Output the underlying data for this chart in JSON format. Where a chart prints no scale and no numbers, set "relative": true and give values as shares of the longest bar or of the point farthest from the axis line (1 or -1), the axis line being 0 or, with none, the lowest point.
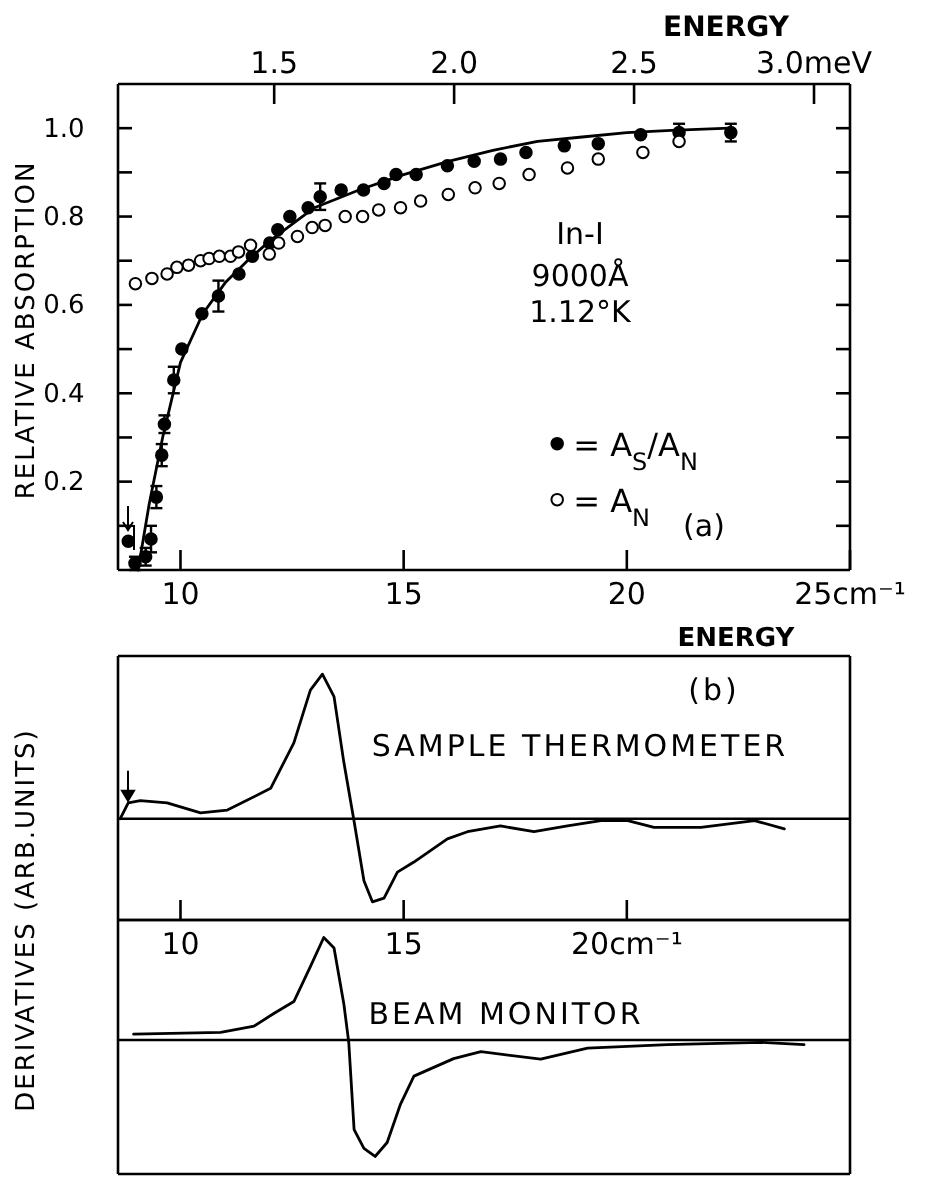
{
  "chart_data": [
    {
      "type": "scatter",
      "ylabel": "RELATIVE ABSORPTION",
      "x2label": "ENERGY",
      "xlim": [
        8.6,
        25
      ],
      "ylim": [
        0,
        1.1
      ],
      "x2lim": [
        1.066,
        3.1
      ],
      "xticks": [
        10,
        15,
        20,
        {
          "value": 25,
          "label": "25cm⁻¹"
        }
      ],
      "yticks": [
        {
          "value": 0.1,
          "label": null
        },
        {
          "value": 0.2,
          "label": "0.2"
        },
        {
          "value": 0.3,
          "label": null
        },
        {
          "value": 0.4,
          "label": "0.4"
        },
        {
          "value": 0.5,
          "label": null
        },
        {
          "value": 0.6,
          "label": "0.6"
        },
        {
          "value": 0.7,
          "label": null
        },
        {
          "value": 0.8,
          "label": "0.8"
        },
        {
          "value": 0.9,
          "label": null
        },
        {
          "value": 1,
          "label": "1.0"
        }
      ],
      "x2ticks": [
        1.5,
        {
          "value": 2,
          "label": "2.0"
        },
        2.5,
        {
          "value": 3,
          "label": "3.0meV"
        }
      ],
      "legend": "right",
      "annotations": [
        "In-I",
        "9000Å",
        "1.12°K",
        "(a)"
      ],
      "series": [
        {
          "type": "line",
          "color": "#000000",
          "x": [
            9.05,
            9.3,
            9.6,
            10.0,
            10.5,
            11.0,
            11.5,
            12.0,
            13.0,
            14.0,
            15.0,
            16.0,
            17.0,
            18.0,
            19.0,
            20.0,
            21.0,
            22.3
          ],
          "values": [
            0,
            0.15,
            0.3,
            0.47,
            0.58,
            0.65,
            0.7,
            0.745,
            0.82,
            0.86,
            0.895,
            0.925,
            0.95,
            0.97,
            0.98,
            0.99,
            0.995,
            1.0
          ]
        },
        {
          "name": "= A$_{S}$/A$_{N}$",
          "type": "scatter",
          "marker": "circle",
          "color": "#000000",
          "x": [
            8.83,
            8.98,
            9.22,
            9.34,
            9.46,
            9.58,
            9.64,
            9.85,
            10.03,
            10.48,
            10.85,
            11.31,
            11.61,
            12.0,
            12.18,
            12.45,
            12.86,
            13.13,
            13.6,
            14.1,
            14.56,
            14.83,
            15.28,
            15.98,
            16.58,
            17.17,
            17.74,
            18.6,
            19.36,
            20.31,
            21.17,
            22.33
          ],
          "values": [
            0.065,
            0.015,
            0.03,
            0.07,
            0.165,
            0.26,
            0.33,
            0.43,
            0.5,
            0.58,
            0.62,
            0.67,
            0.71,
            0.74,
            0.77,
            0.8,
            0.82,
            0.845,
            0.86,
            0.86,
            0.875,
            0.895,
            0.895,
            0.915,
            0.925,
            0.93,
            0.945,
            0.96,
            0.965,
            0.985,
            0.99,
            0.99
          ],
          "errors": [
            null,
            0.015,
            0.02,
            0.03,
            0.025,
            0.025,
            0.02,
            0.03,
            null,
            null,
            0.035,
            null,
            null,
            null,
            null,
            null,
            null,
            0.03,
            null,
            null,
            null,
            null,
            null,
            null,
            null,
            null,
            null,
            null,
            null,
            null,
            0.02,
            0.02
          ]
        },
        {
          "name": "= A$_{N}$",
          "type": "scatter",
          "marker": "circle",
          "color": "#ffffff",
          "x": [
            8.99,
            9.36,
            9.7,
            9.92,
            10.18,
            10.45,
            10.64,
            10.87,
            11.12,
            11.3,
            11.57,
            11.99,
            12.2,
            12.62,
            12.95,
            13.24,
            13.69,
            14.08,
            14.44,
            14.93,
            15.38,
            16.0,
            16.6,
            17.14,
            17.81,
            18.67,
            19.36,
            20.36,
            21.17
          ],
          "values": [
            0.648,
            0.66,
            0.67,
            0.685,
            0.69,
            0.7,
            0.705,
            0.71,
            0.71,
            0.72,
            0.735,
            0.715,
            0.74,
            0.755,
            0.775,
            0.78,
            0.8,
            0.8,
            0.815,
            0.82,
            0.835,
            0.85,
            0.865,
            0.875,
            0.895,
            0.91,
            0.93,
            0.945,
            0.97
          ]
        }
      ]
    },
    {
      "type": "line",
      "relative": true,
      "xlabel": "ENERGY",
      "ylabel": "DERIVATIVES (ARB.UNITS)",
      "xlim": [
        8.6,
        25
      ],
      "xticks": [
        10,
        15,
        {
          "value": 20,
          "label": "20cm⁻¹"
        }
      ],
      "annotations": [
        "(b)",
        "SAMPLE THERMOMETER"
      ],
      "series": [
        {
          "color": "#000000",
          "x": [
            8.65,
            8.83,
            9.1,
            9.7,
            10.45,
            11.05,
            12.02,
            12.54,
            12.91,
            13.18,
            13.44,
            13.66,
            13.89,
            14.11,
            14.3,
            14.56,
            14.86,
            15.23,
            15.98,
            16.43,
            17.17,
            17.92,
            18.67,
            19.42,
            20.02,
            20.61,
            21.66,
            22.86,
            23.53
          ],
          "values": [
            0,
            0.11,
            0.125,
            0.11,
            0.04,
            0.06,
            0.21,
            0.525,
            0.89,
            1.0,
            0.845,
            0.39,
            -0.02,
            -0.43,
            -0.575,
            -0.55,
            -0.37,
            -0.3,
            -0.14,
            -0.09,
            -0.05,
            -0.09,
            -0.05,
            -0.013,
            -0.013,
            -0.06,
            -0.06,
            -0.013,
            -0.07
          ]
        }
      ]
    },
    {
      "type": "line",
      "relative": true,
      "xlim": [
        8.6,
        25
      ],
      "annotations": [
        "BEAM MONITOR"
      ],
      "series": [
        {
          "color": "#000000",
          "x": [
            8.95,
            10.9,
            11.65,
            12.1,
            12.54,
            12.91,
            13.21,
            13.44,
            13.66,
            13.77,
            13.89,
            14.11,
            14.36,
            14.63,
            14.93,
            15.23,
            16.12,
            16.73,
            18.07,
            19.12,
            20.91,
            23.0,
            23.97
          ],
          "values": [
            0.05,
            0.065,
            0.12,
            0.23,
            0.33,
            0.63,
            0.88,
            0.79,
            0.31,
            -0.02,
            -0.77,
            -0.93,
            -1.0,
            -0.88,
            -0.55,
            -0.31,
            -0.16,
            -0.1,
            -0.165,
            -0.07,
            -0.04,
            -0.02,
            -0.04
          ]
        }
      ]
    }
  ]
}
